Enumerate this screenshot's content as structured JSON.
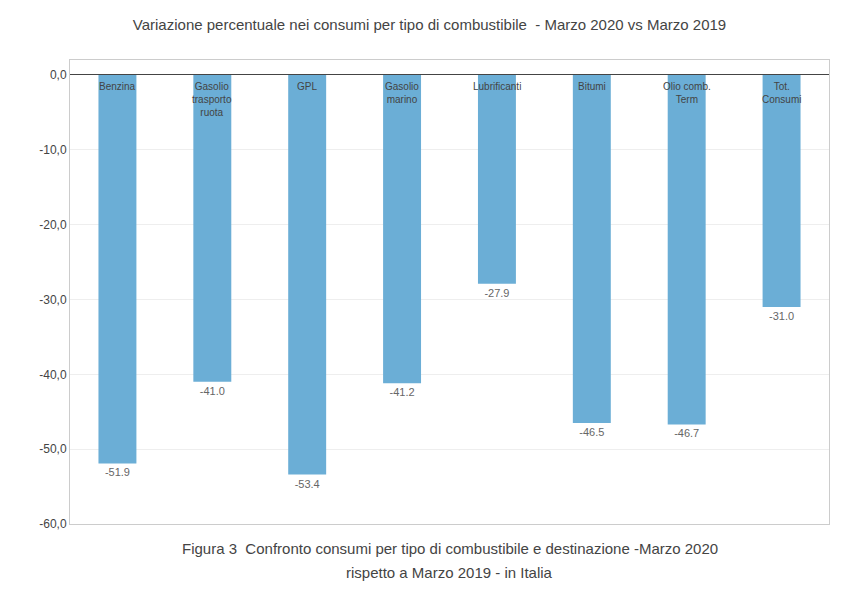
{
  "chart_data": {
    "type": "bar",
    "title": "Variazione percentuale nei consumi per tipo di combustibile  - Marzo 2020 vs Marzo 2019",
    "categories": [
      "Benzina",
      "Gasolio trasporto ruota",
      "GPL",
      "Gasolio marino",
      "Lubrificanti",
      "Bitumi",
      "Olio comb. Term",
      "Tot. Consumi"
    ],
    "values": [
      -51.9,
      -41.0,
      -53.4,
      -41.2,
      -27.9,
      -46.5,
      -46.7,
      -31.0
    ],
    "value_labels": [
      "-51.9",
      "-41.0",
      "-53.4",
      "-41.2",
      "-27.9",
      "-46.5",
      "-46.7",
      "-31.0"
    ],
    "data_labels": true,
    "color": "#6baed6",
    "ylim": [
      -60,
      2
    ],
    "yticks": [
      {
        "value": 0.0,
        "label": "0,0"
      },
      {
        "value": -10.0,
        "label": "-10,0"
      },
      {
        "value": -20.0,
        "label": "-20,0"
      },
      {
        "value": -30.0,
        "label": "-30,0"
      },
      {
        "value": -40.0,
        "label": "-40,0"
      },
      {
        "value": -50.0,
        "label": "-50,0"
      },
      {
        "value": -60.0,
        "label": "-60,0"
      }
    ],
    "grid": true,
    "tick_labels": "y",
    "annotations": [
      "Figura 3  Confronto consumi per tipo di combustibile e destinazione -Marzo 2020",
      "rispetto a Marzo 2019 - in Italia"
    ]
  }
}
